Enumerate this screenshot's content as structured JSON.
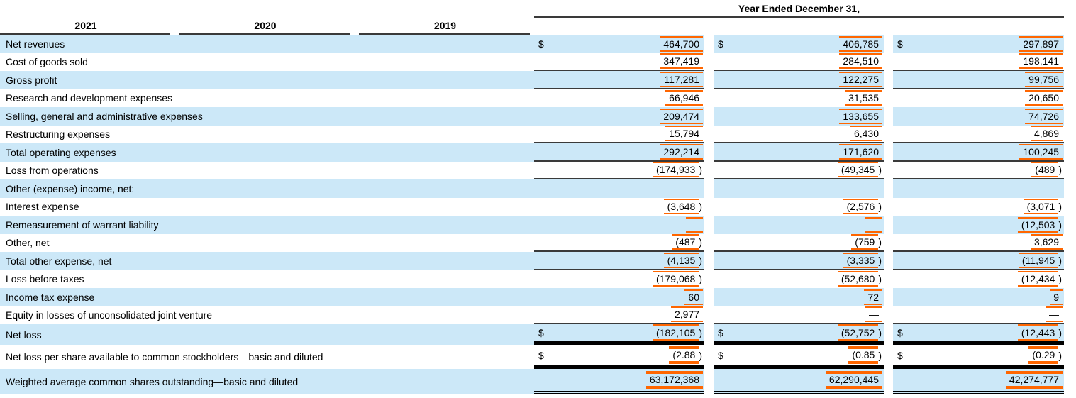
{
  "table": {
    "header": {
      "title": "Year Ended December 31,",
      "years": [
        "2021",
        "2020",
        "2019"
      ]
    },
    "colors": {
      "stripe_blue": "#cce8f8",
      "tag_orange": "#ff6600",
      "rule_dark": "#3a3a3a",
      "double_rule": "#000000"
    },
    "currency_symbol": "$",
    "rows": [
      {
        "label": "Net revenues",
        "stripe": "blue",
        "dollar": true,
        "values": [
          "464,700",
          "406,785",
          "297,897"
        ]
      },
      {
        "label": "Cost of goods sold",
        "stripe": "white",
        "border": "single",
        "values": [
          "347,419",
          "284,510",
          "198,141"
        ]
      },
      {
        "label": "Gross profit",
        "stripe": "blue",
        "border": "single",
        "values": [
          "117,281",
          "122,275",
          "99,756"
        ]
      },
      {
        "label": "Research and development expenses",
        "stripe": "white",
        "values": [
          "66,946",
          "31,535",
          "20,650"
        ]
      },
      {
        "label": "Selling, general and administrative expenses",
        "stripe": "blue",
        "values": [
          "209,474",
          "133,655",
          "74,726"
        ]
      },
      {
        "label": "Restructuring expenses",
        "stripe": "white",
        "border": "single",
        "values": [
          "15,794",
          "6,430",
          "4,869"
        ]
      },
      {
        "label": "Total operating expenses",
        "stripe": "blue",
        "border": "single",
        "values": [
          "292,214",
          "171,620",
          "100,245"
        ]
      },
      {
        "label": "Loss from operations",
        "stripe": "white",
        "border": "single",
        "values": [
          "(174,933)",
          "(49,345)",
          "(489)"
        ]
      },
      {
        "label": "Other (expense) income, net:",
        "stripe": "blue",
        "values": [
          null,
          null,
          null
        ]
      },
      {
        "label": "Interest expense",
        "stripe": "white",
        "values": [
          "(3,648)",
          "(2,576)",
          "(3,071)"
        ]
      },
      {
        "label": "Remeasurement of warrant liability",
        "stripe": "blue",
        "values": [
          "—",
          "—",
          "(12,503)"
        ]
      },
      {
        "label": "Other, net",
        "stripe": "white",
        "border": "single",
        "values": [
          "(487)",
          "(759)",
          "3,629"
        ]
      },
      {
        "label": "Total other expense, net",
        "stripe": "blue",
        "border": "single",
        "values": [
          "(4,135)",
          "(3,335)",
          "(11,945)"
        ]
      },
      {
        "label": "Loss before taxes",
        "stripe": "white",
        "values": [
          "(179,068)",
          "(52,680)",
          "(12,434)"
        ]
      },
      {
        "label": "Income tax expense",
        "stripe": "blue",
        "values": [
          "60",
          "72",
          "9"
        ]
      },
      {
        "label": "Equity in losses of unconsolidated joint venture",
        "stripe": "white",
        "border": "single",
        "values": [
          "2,977",
          "—",
          "—"
        ]
      },
      {
        "label": "Net loss",
        "stripe": "blue",
        "dollar": true,
        "border": "double",
        "tag": "medium",
        "size": "netloss",
        "values": [
          "(182,105)",
          "(52,752)",
          "(12,443)"
        ]
      },
      {
        "label": "Net loss per share available to common stockholders—basic and diluted",
        "stripe": "white",
        "dollar": true,
        "border": "double",
        "tag": "thick",
        "size": "tall",
        "values": [
          "(2.88)",
          "(0.85)",
          "(0.29)"
        ]
      },
      {
        "label": "Weighted average common shares outstanding—basic and diluted",
        "stripe": "blue",
        "border": "double",
        "tag": "thick",
        "size": "tall2",
        "values": [
          "63,172,368",
          "62,290,445",
          "42,274,777"
        ]
      }
    ]
  }
}
